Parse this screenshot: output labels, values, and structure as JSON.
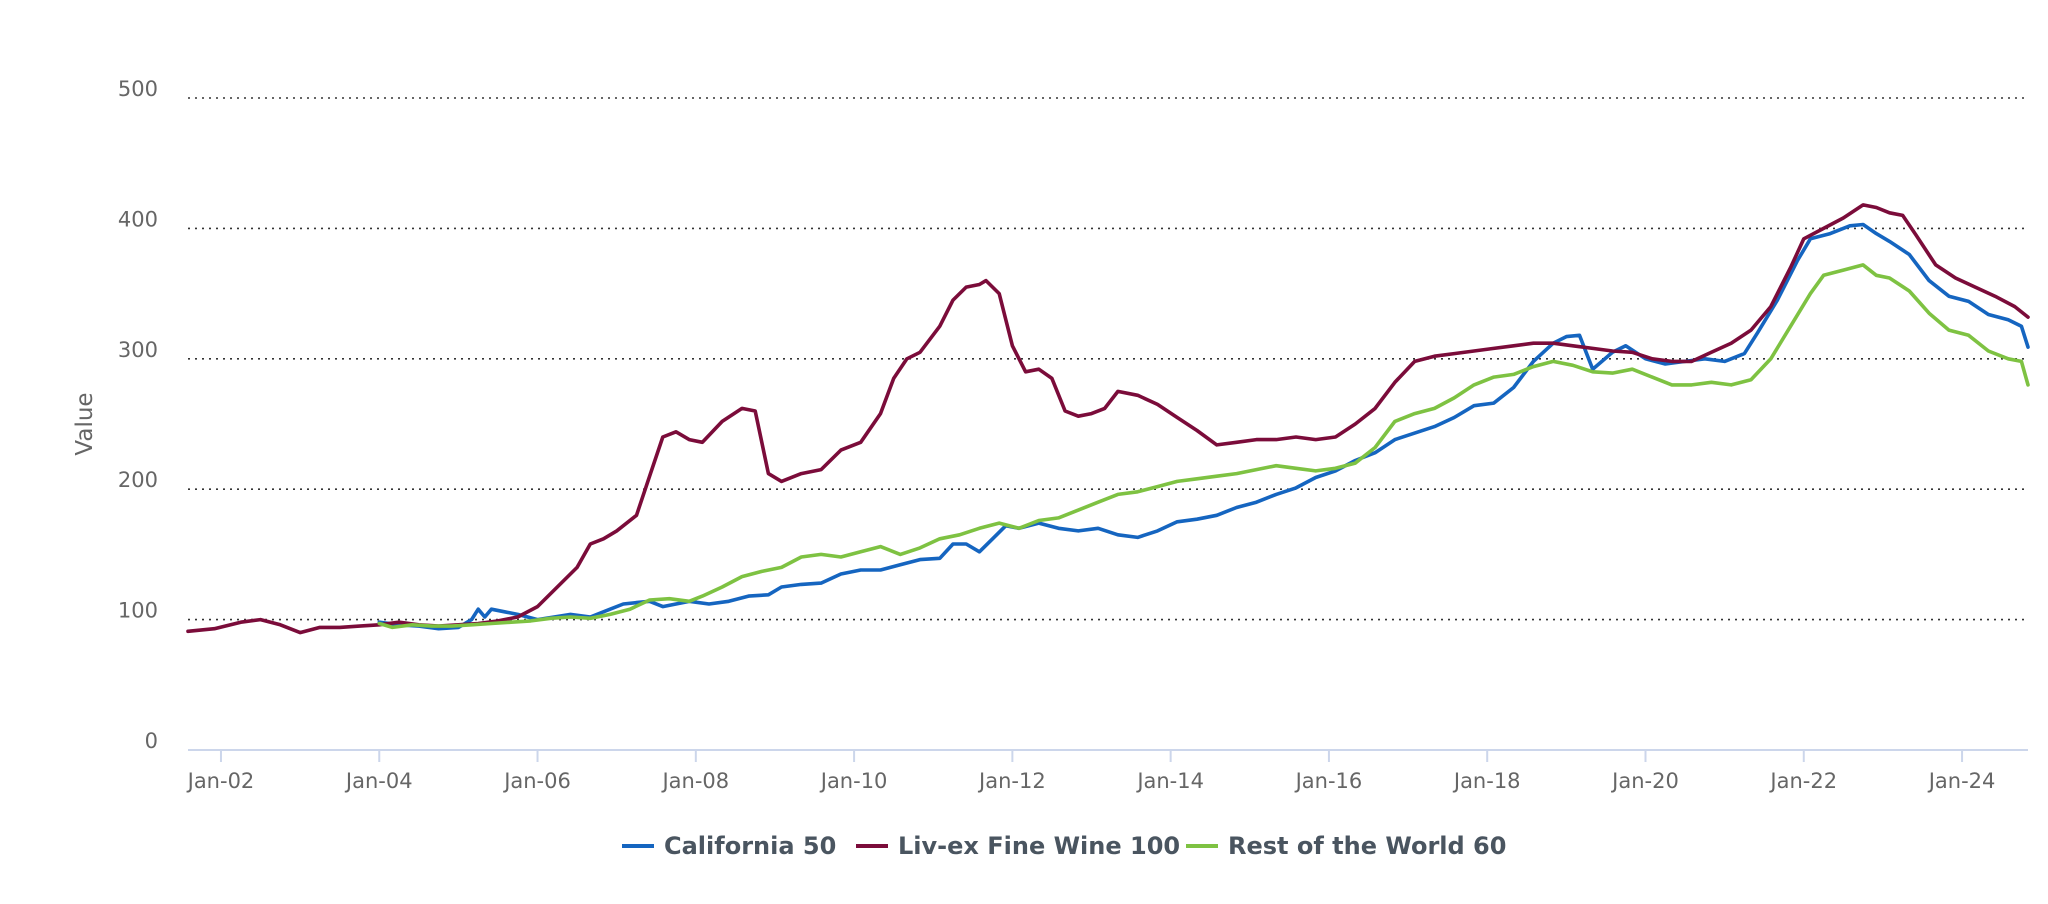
{
  "chart_data": {
    "type": "line",
    "title": "",
    "xlabel": "",
    "ylabel": "Value",
    "ylim": [
      0,
      500
    ],
    "yticks": [
      0,
      100,
      200,
      300,
      400,
      500
    ],
    "xlim": [
      "2001-08",
      "2024-11"
    ],
    "xticks": [
      "Jan-02",
      "Jan-04",
      "Jan-06",
      "Jan-08",
      "Jan-10",
      "Jan-12",
      "Jan-14",
      "Jan-16",
      "Jan-18",
      "Jan-20",
      "Jan-22",
      "Jan-24"
    ],
    "grid": true,
    "legend": "bottom-center",
    "series": [
      {
        "name": "California 50",
        "color": "#1565c0",
        "points": [
          [
            "2004-01",
            98
          ],
          [
            "2004-04",
            96
          ],
          [
            "2004-07",
            95
          ],
          [
            "2004-10",
            93
          ],
          [
            "2005-01",
            94
          ],
          [
            "2005-03",
            100
          ],
          [
            "2005-04",
            108
          ],
          [
            "2005-05",
            102
          ],
          [
            "2005-06",
            108
          ],
          [
            "2005-08",
            106
          ],
          [
            "2005-10",
            104
          ],
          [
            "2006-01",
            100
          ],
          [
            "2006-06",
            104
          ],
          [
            "2006-09",
            102
          ],
          [
            "2006-12",
            108
          ],
          [
            "2007-02",
            112
          ],
          [
            "2007-04",
            113
          ],
          [
            "2007-06",
            114
          ],
          [
            "2007-08",
            110
          ],
          [
            "2007-10",
            112
          ],
          [
            "2007-12",
            114
          ],
          [
            "2008-03",
            112
          ],
          [
            "2008-06",
            114
          ],
          [
            "2008-09",
            118
          ],
          [
            "2008-12",
            119
          ],
          [
            "2009-02",
            125
          ],
          [
            "2009-05",
            127
          ],
          [
            "2009-08",
            128
          ],
          [
            "2009-11",
            135
          ],
          [
            "2010-02",
            138
          ],
          [
            "2010-05",
            138
          ],
          [
            "2010-08",
            142
          ],
          [
            "2010-11",
            146
          ],
          [
            "2011-02",
            147
          ],
          [
            "2011-04",
            158
          ],
          [
            "2011-06",
            158
          ],
          [
            "2011-08",
            152
          ],
          [
            "2011-10",
            162
          ],
          [
            "2011-12",
            172
          ],
          [
            "2012-02",
            170
          ],
          [
            "2012-05",
            174
          ],
          [
            "2012-08",
            170
          ],
          [
            "2012-11",
            168
          ],
          [
            "2013-02",
            170
          ],
          [
            "2013-05",
            165
          ],
          [
            "2013-08",
            163
          ],
          [
            "2013-11",
            168
          ],
          [
            "2014-02",
            175
          ],
          [
            "2014-05",
            177
          ],
          [
            "2014-08",
            180
          ],
          [
            "2014-11",
            186
          ],
          [
            "2015-02",
            190
          ],
          [
            "2015-05",
            196
          ],
          [
            "2015-08",
            201
          ],
          [
            "2015-11",
            209
          ],
          [
            "2016-02",
            214
          ],
          [
            "2016-05",
            222
          ],
          [
            "2016-08",
            228
          ],
          [
            "2016-11",
            238
          ],
          [
            "2017-02",
            243
          ],
          [
            "2017-05",
            248
          ],
          [
            "2017-08",
            255
          ],
          [
            "2017-11",
            264
          ],
          [
            "2018-02",
            266
          ],
          [
            "2018-05",
            278
          ],
          [
            "2018-08",
            298
          ],
          [
            "2018-11",
            312
          ],
          [
            "2019-01",
            317
          ],
          [
            "2019-03",
            318
          ],
          [
            "2019-05",
            292
          ],
          [
            "2019-08",
            305
          ],
          [
            "2019-10",
            310
          ],
          [
            "2020-01",
            300
          ],
          [
            "2020-04",
            296
          ],
          [
            "2020-07",
            298
          ],
          [
            "2020-10",
            300
          ],
          [
            "2021-01",
            298
          ],
          [
            "2021-04",
            304
          ],
          [
            "2021-06",
            320
          ],
          [
            "2021-09",
            345
          ],
          [
            "2021-12",
            375
          ],
          [
            "2022-02",
            392
          ],
          [
            "2022-05",
            396
          ],
          [
            "2022-08",
            402
          ],
          [
            "2022-10",
            403
          ],
          [
            "2022-12",
            396
          ],
          [
            "2023-02",
            390
          ],
          [
            "2023-05",
            380
          ],
          [
            "2023-08",
            360
          ],
          [
            "2023-11",
            348
          ],
          [
            "2024-02",
            344
          ],
          [
            "2024-05",
            334
          ],
          [
            "2024-08",
            330
          ],
          [
            "2024-10",
            325
          ],
          [
            "2024-11",
            309
          ]
        ]
      },
      {
        "name": "Liv-ex Fine Wine 100",
        "color": "#7b0c3a",
        "points": [
          [
            "2001-08",
            91
          ],
          [
            "2001-12",
            93
          ],
          [
            "2002-04",
            98
          ],
          [
            "2002-07",
            100
          ],
          [
            "2002-10",
            96
          ],
          [
            "2003-01",
            90
          ],
          [
            "2003-04",
            94
          ],
          [
            "2003-07",
            94
          ],
          [
            "2003-10",
            95
          ],
          [
            "2004-01",
            96
          ],
          [
            "2004-04",
            98
          ],
          [
            "2004-07",
            96
          ],
          [
            "2004-10",
            95
          ],
          [
            "2005-01",
            96
          ],
          [
            "2005-04",
            97
          ],
          [
            "2005-07",
            99
          ],
          [
            "2005-10",
            102
          ],
          [
            "2006-01",
            110
          ],
          [
            "2006-04",
            125
          ],
          [
            "2006-07",
            140
          ],
          [
            "2006-09",
            158
          ],
          [
            "2006-11",
            162
          ],
          [
            "2007-01",
            168
          ],
          [
            "2007-04",
            180
          ],
          [
            "2007-06",
            210
          ],
          [
            "2007-08",
            240
          ],
          [
            "2007-10",
            244
          ],
          [
            "2007-12",
            238
          ],
          [
            "2008-02",
            236
          ],
          [
            "2008-05",
            252
          ],
          [
            "2008-08",
            262
          ],
          [
            "2008-10",
            260
          ],
          [
            "2008-12",
            212
          ],
          [
            "2009-02",
            206
          ],
          [
            "2009-05",
            212
          ],
          [
            "2009-08",
            215
          ],
          [
            "2009-11",
            230
          ],
          [
            "2010-02",
            236
          ],
          [
            "2010-05",
            258
          ],
          [
            "2010-07",
            285
          ],
          [
            "2010-09",
            300
          ],
          [
            "2010-11",
            305
          ],
          [
            "2011-02",
            325
          ],
          [
            "2011-04",
            345
          ],
          [
            "2011-06",
            355
          ],
          [
            "2011-08",
            357
          ],
          [
            "2011-09",
            360
          ],
          [
            "2011-11",
            350
          ],
          [
            "2012-01",
            310
          ],
          [
            "2012-03",
            290
          ],
          [
            "2012-05",
            292
          ],
          [
            "2012-07",
            285
          ],
          [
            "2012-09",
            260
          ],
          [
            "2012-11",
            256
          ],
          [
            "2013-01",
            258
          ],
          [
            "2013-03",
            262
          ],
          [
            "2013-05",
            275
          ],
          [
            "2013-08",
            272
          ],
          [
            "2013-11",
            265
          ],
          [
            "2014-02",
            255
          ],
          [
            "2014-05",
            245
          ],
          [
            "2014-08",
            234
          ],
          [
            "2014-11",
            236
          ],
          [
            "2015-02",
            238
          ],
          [
            "2015-05",
            238
          ],
          [
            "2015-08",
            240
          ],
          [
            "2015-11",
            238
          ],
          [
            "2016-02",
            240
          ],
          [
            "2016-05",
            250
          ],
          [
            "2016-08",
            262
          ],
          [
            "2016-11",
            282
          ],
          [
            "2017-02",
            298
          ],
          [
            "2017-05",
            302
          ],
          [
            "2017-08",
            304
          ],
          [
            "2017-11",
            306
          ],
          [
            "2018-02",
            308
          ],
          [
            "2018-05",
            310
          ],
          [
            "2018-08",
            312
          ],
          [
            "2018-11",
            312
          ],
          [
            "2019-02",
            310
          ],
          [
            "2019-05",
            308
          ],
          [
            "2019-08",
            306
          ],
          [
            "2019-11",
            305
          ],
          [
            "2020-02",
            300
          ],
          [
            "2020-05",
            298
          ],
          [
            "2020-08",
            298
          ],
          [
            "2020-11",
            305
          ],
          [
            "2021-02",
            312
          ],
          [
            "2021-05",
            322
          ],
          [
            "2021-08",
            340
          ],
          [
            "2021-11",
            370
          ],
          [
            "2022-01",
            392
          ],
          [
            "2022-04",
            400
          ],
          [
            "2022-07",
            408
          ],
          [
            "2022-10",
            418
          ],
          [
            "2022-12",
            416
          ],
          [
            "2023-02",
            412
          ],
          [
            "2023-04",
            410
          ],
          [
            "2023-06",
            395
          ],
          [
            "2023-09",
            372
          ],
          [
            "2023-12",
            362
          ],
          [
            "2024-03",
            355
          ],
          [
            "2024-06",
            348
          ],
          [
            "2024-09",
            340
          ],
          [
            "2024-11",
            332
          ]
        ]
      },
      {
        "name": "Rest of the World 60",
        "color": "#7ec242",
        "points": [
          [
            "2004-01",
            97
          ],
          [
            "2004-03",
            94
          ],
          [
            "2004-06",
            96
          ],
          [
            "2004-09",
            95
          ],
          [
            "2004-12",
            95
          ],
          [
            "2005-03",
            96
          ],
          [
            "2005-06",
            97
          ],
          [
            "2005-09",
            98
          ],
          [
            "2005-12",
            99
          ],
          [
            "2006-03",
            101
          ],
          [
            "2006-06",
            102
          ],
          [
            "2006-09",
            101
          ],
          [
            "2006-12",
            104
          ],
          [
            "2007-03",
            108
          ],
          [
            "2007-06",
            115
          ],
          [
            "2007-09",
            116
          ],
          [
            "2007-12",
            114
          ],
          [
            "2008-02",
            118
          ],
          [
            "2008-05",
            125
          ],
          [
            "2008-08",
            133
          ],
          [
            "2008-11",
            137
          ],
          [
            "2009-02",
            140
          ],
          [
            "2009-05",
            148
          ],
          [
            "2009-08",
            150
          ],
          [
            "2009-11",
            148
          ],
          [
            "2010-02",
            152
          ],
          [
            "2010-05",
            156
          ],
          [
            "2010-08",
            150
          ],
          [
            "2010-11",
            155
          ],
          [
            "2011-02",
            162
          ],
          [
            "2011-05",
            165
          ],
          [
            "2011-08",
            170
          ],
          [
            "2011-11",
            174
          ],
          [
            "2012-02",
            170
          ],
          [
            "2012-05",
            176
          ],
          [
            "2012-08",
            178
          ],
          [
            "2012-11",
            184
          ],
          [
            "2013-02",
            190
          ],
          [
            "2013-05",
            196
          ],
          [
            "2013-08",
            198
          ],
          [
            "2013-11",
            202
          ],
          [
            "2014-02",
            206
          ],
          [
            "2014-05",
            208
          ],
          [
            "2014-08",
            210
          ],
          [
            "2014-11",
            212
          ],
          [
            "2015-02",
            215
          ],
          [
            "2015-05",
            218
          ],
          [
            "2015-08",
            216
          ],
          [
            "2015-11",
            214
          ],
          [
            "2016-02",
            216
          ],
          [
            "2016-05",
            220
          ],
          [
            "2016-08",
            232
          ],
          [
            "2016-11",
            252
          ],
          [
            "2017-02",
            258
          ],
          [
            "2017-05",
            262
          ],
          [
            "2017-08",
            270
          ],
          [
            "2017-11",
            280
          ],
          [
            "2018-02",
            286
          ],
          [
            "2018-05",
            288
          ],
          [
            "2018-08",
            294
          ],
          [
            "2018-11",
            298
          ],
          [
            "2019-02",
            295
          ],
          [
            "2019-05",
            290
          ],
          [
            "2019-08",
            289
          ],
          [
            "2019-11",
            292
          ],
          [
            "2020-02",
            286
          ],
          [
            "2020-05",
            280
          ],
          [
            "2020-08",
            280
          ],
          [
            "2020-11",
            282
          ],
          [
            "2021-02",
            280
          ],
          [
            "2021-05",
            284
          ],
          [
            "2021-08",
            300
          ],
          [
            "2021-11",
            325
          ],
          [
            "2022-02",
            350
          ],
          [
            "2022-04",
            364
          ],
          [
            "2022-07",
            368
          ],
          [
            "2022-10",
            372
          ],
          [
            "2022-12",
            364
          ],
          [
            "2023-02",
            362
          ],
          [
            "2023-05",
            352
          ],
          [
            "2023-08",
            335
          ],
          [
            "2023-11",
            322
          ],
          [
            "2024-02",
            318
          ],
          [
            "2024-05",
            306
          ],
          [
            "2024-08",
            300
          ],
          [
            "2024-10",
            298
          ],
          [
            "2024-11",
            280
          ]
        ]
      }
    ]
  }
}
